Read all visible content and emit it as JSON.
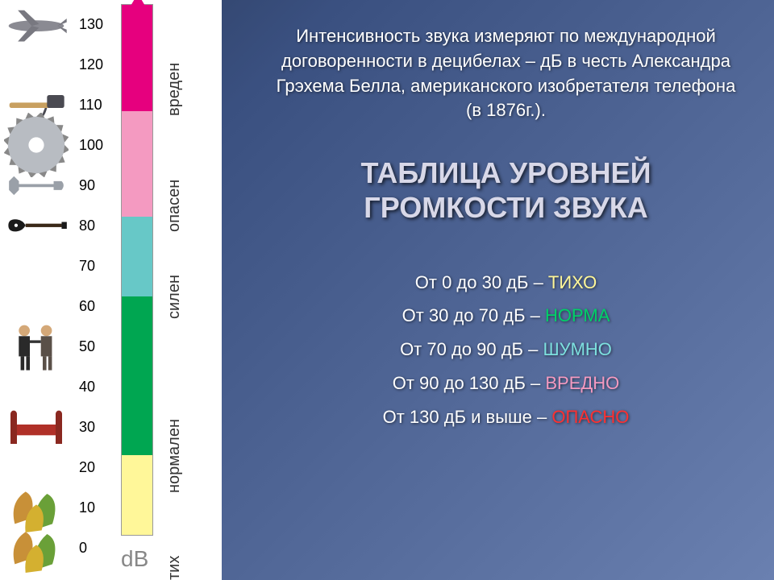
{
  "intro": "Интенсивность звука измеряют по международной договоренности в децибелах – дБ в честь Александра Грэхема Белла, американского изобретателя телефона (в 1876г.).",
  "title": "ТАБЛИЦА УРОВНЕЙ ГРОМКОСТИ ЗВУКА",
  "db_unit": "dB",
  "scale_values": [
    "0",
    "10",
    "20",
    "30",
    "40",
    "50",
    "60",
    "70",
    "80",
    "90",
    "100",
    "110",
    "120",
    "130"
  ],
  "zones": [
    {
      "label": "тих",
      "color": "#fff799",
      "top_pct": 85,
      "height_pct": 15
    },
    {
      "label": "нормален",
      "color": "#00a651",
      "top_pct": 55,
      "height_pct": 30
    },
    {
      "label": "силен",
      "color": "#67c8c7",
      "top_pct": 40,
      "height_pct": 15
    },
    {
      "label": "опасен",
      "color": "#f49ac1",
      "top_pct": 20,
      "height_pct": 20
    },
    {
      "label": "вреден",
      "color": "#e6007e",
      "top_pct": 0,
      "height_pct": 20
    }
  ],
  "levels": [
    {
      "range": "От 0 до 30 дБ –",
      "word": "ТИХО",
      "color": "#fff799"
    },
    {
      "range": "От 30 до 70 дБ –",
      "word": "НОРМА",
      "color": "#00d068"
    },
    {
      "range": "От  70 до 90 дБ –",
      "word": "ШУМНО",
      "color": "#7de0df"
    },
    {
      "range": "От 90 до 130 дБ –",
      "word": "ВРЕДНО",
      "color": "#f49ac1"
    },
    {
      "range": "От 130 дБ и выше –",
      "word": "ОПАСНО",
      "color": "#ff3030"
    }
  ],
  "icons": [
    {
      "name": "leaves",
      "slot": 0
    },
    {
      "name": "leaves2",
      "slot": 1
    },
    {
      "name": "bed",
      "slot": 3
    },
    {
      "name": "person-pair",
      "slot": 5
    },
    {
      "name": "guitar",
      "slot": 8
    },
    {
      "name": "wrench",
      "slot": 9
    },
    {
      "name": "saw-blade",
      "slot": 10
    },
    {
      "name": "hammer",
      "slot": 11
    },
    {
      "name": "airplane",
      "slot": 13
    }
  ]
}
